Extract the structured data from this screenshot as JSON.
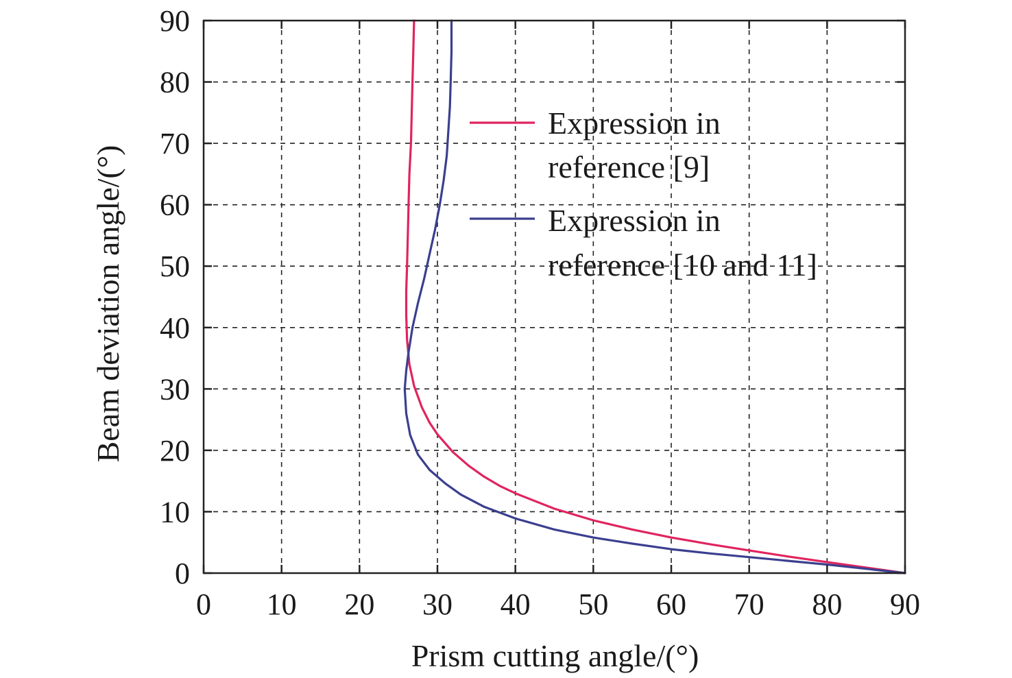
{
  "chart_data": {
    "type": "line",
    "title": "",
    "xlabel": "Prism cutting angle/(°)",
    "ylabel": "Beam deviation angle/(°)",
    "xlim": [
      0,
      90
    ],
    "ylim": [
      0,
      90
    ],
    "xticks": [
      0,
      10,
      20,
      30,
      40,
      50,
      60,
      70,
      80,
      90
    ],
    "yticks": [
      0,
      10,
      20,
      30,
      40,
      50,
      60,
      70,
      80,
      90
    ],
    "grid": true,
    "legend_position": "top-right",
    "series": [
      {
        "name": "Expression in reference [9]",
        "legend_lines": [
          "Expression in",
          "reference [9]"
        ],
        "color": "#e0245e",
        "points": [
          [
            90,
            0
          ],
          [
            85,
            0.9
          ],
          [
            80,
            1.8
          ],
          [
            75,
            2.7
          ],
          [
            70,
            3.7
          ],
          [
            65,
            4.7
          ],
          [
            60,
            5.8
          ],
          [
            55,
            7.1
          ],
          [
            50,
            8.6
          ],
          [
            45,
            10.5
          ],
          [
            40,
            13.0
          ],
          [
            38,
            14.2
          ],
          [
            36,
            15.7
          ],
          [
            34,
            17.5
          ],
          [
            32,
            19.7
          ],
          [
            30,
            22.6
          ],
          [
            29,
            24.5
          ],
          [
            28,
            27.0
          ],
          [
            27,
            30.5
          ],
          [
            26.4,
            34.0
          ],
          [
            26.1,
            38.0
          ],
          [
            26.0,
            42.0
          ],
          [
            26.0,
            46.0
          ],
          [
            26.1,
            50.0
          ],
          [
            26.2,
            55.0
          ],
          [
            26.3,
            60.0
          ],
          [
            26.4,
            65.0
          ],
          [
            26.6,
            70.0
          ],
          [
            26.7,
            75.0
          ],
          [
            26.8,
            80.0
          ],
          [
            26.9,
            85.0
          ],
          [
            27.0,
            90.0
          ]
        ]
      },
      {
        "name": "Expression in reference [10 and 11]",
        "legend_lines": [
          "Expression in",
          "reference [10 and 11]"
        ],
        "color": "#3b3f8f",
        "points": [
          [
            90,
            0
          ],
          [
            85,
            0.7
          ],
          [
            80,
            1.4
          ],
          [
            75,
            2.0
          ],
          [
            70,
            2.6
          ],
          [
            65,
            3.2
          ],
          [
            60,
            3.9
          ],
          [
            55,
            4.8
          ],
          [
            50,
            5.8
          ],
          [
            45,
            7.1
          ],
          [
            40,
            8.9
          ],
          [
            36,
            10.8
          ],
          [
            33,
            12.8
          ],
          [
            31,
            14.6
          ],
          [
            29,
            16.8
          ],
          [
            27.5,
            19.3
          ],
          [
            26.5,
            22.5
          ],
          [
            26.0,
            26.0
          ],
          [
            25.8,
            30.0
          ],
          [
            26.0,
            33.0
          ],
          [
            26.3,
            36.0
          ],
          [
            26.8,
            40.0
          ],
          [
            27.5,
            44.0
          ],
          [
            28.3,
            48.0
          ],
          [
            29.0,
            52.0
          ],
          [
            29.7,
            56.0
          ],
          [
            30.3,
            60.0
          ],
          [
            30.8,
            64.0
          ],
          [
            31.2,
            68.0
          ],
          [
            31.4,
            72.0
          ],
          [
            31.6,
            76.0
          ],
          [
            31.7,
            80.0
          ],
          [
            31.8,
            85.0
          ],
          [
            31.8,
            90.0
          ]
        ]
      }
    ]
  }
}
